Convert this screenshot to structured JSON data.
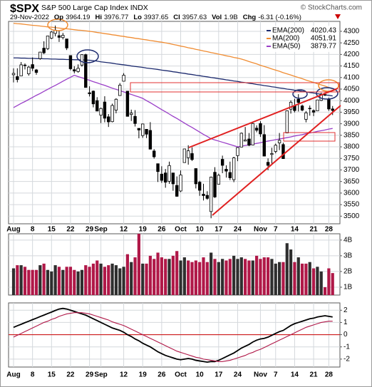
{
  "chart_data": [
    {
      "type": "candlestick",
      "title": "$SPX",
      "subtitle": "S&P 500 Large Cap Index INDX",
      "watermark": "© StockCharts.com",
      "date": "29-Nov-2022",
      "quote": [
        {
          "label": "Op",
          "value": "3964.19"
        },
        {
          "label": "Hi",
          "value": "3976.77"
        },
        {
          "label": "Lo",
          "value": "3937.65"
        },
        {
          "label": "Cl",
          "value": "3957.63"
        },
        {
          "label": "Vol",
          "value": "1.9B"
        },
        {
          "label": "Chg",
          "value": "-6.31 (-0.16%)"
        }
      ],
      "color": "#000000",
      "categories": [
        "Aug",
        null,
        null,
        null,
        null,
        "8",
        null,
        null,
        null,
        null,
        "15",
        null,
        null,
        null,
        null,
        "22",
        null,
        null,
        null,
        null,
        "29",
        null,
        null,
        "Sep",
        null,
        null,
        null,
        null,
        null,
        "12",
        null,
        null,
        null,
        null,
        "19",
        null,
        null,
        null,
        null,
        "26",
        null,
        null,
        null,
        null,
        "Oct",
        null,
        null,
        null,
        null,
        "10",
        null,
        null,
        null,
        null,
        "17",
        null,
        null,
        null,
        null,
        "24",
        null,
        null,
        null,
        null,
        null,
        "Nov",
        null,
        null,
        null,
        "7",
        null,
        null,
        null,
        null,
        "14",
        null,
        null,
        null,
        null,
        "21",
        null,
        null,
        null,
        "28",
        null
      ],
      "open": [
        4112,
        4104,
        4107,
        4154,
        4116,
        4156,
        4133,
        4182,
        4227,
        4225,
        4270,
        4291,
        4281,
        4273,
        4267,
        4195,
        4134,
        4126,
        4154,
        4199,
        4034,
        4041,
        4000,
        3937,
        3994,
        3930,
        3909,
        3959,
        4022,
        4084,
        4041,
        3940,
        3932,
        3880,
        3849,
        3876,
        3871,
        3782,
        3727,
        3682,
        3687,
        3651,
        3687,
        3633,
        3609,
        3732,
        3753,
        3771,
        3706,
        3647,
        3595,
        3590,
        3520,
        3690,
        3638,
        3746,
        3703,
        3689,
        3658,
        3762,
        3799,
        3825,
        3834,
        3808,
        3881,
        3901,
        3853,
        3733,
        3767,
        3780,
        3817,
        3810,
        3860,
        3963,
        3978,
        4006,
        3977,
        3919,
        3967,
        3957,
        3956,
        4001,
        4024,
        4005,
        3964.19
      ],
      "high": [
        4140,
        4140,
        4167,
        4161,
        4151,
        4187,
        4137,
        4211,
        4257,
        4280,
        4301,
        4325,
        4303,
        4293,
        4267,
        4196,
        4149,
        4157,
        4200,
        4203,
        4062,
        4044,
        4015,
        3970,
        4019,
        3942,
        3987,
        4010,
        4076,
        4119,
        4041,
        3961,
        3959,
        3880,
        3901,
        3877,
        3907,
        3790,
        3727,
        3716,
        3704,
        3736,
        3687,
        3672,
        3698,
        3791,
        3807,
        3798,
        3706,
        3653,
        3640,
        3608,
        3671,
        3712,
        3684,
        3762,
        3720,
        3736,
        3757,
        3799,
        3862,
        3886,
        3860,
        3905,
        3893,
        3911,
        3894,
        3750,
        3796,
        3814,
        3860,
        3818,
        3958,
        4001,
        4008,
        4028,
        3983,
        3955,
        3979,
        3962,
        4004,
        4034,
        4035,
        4013,
        3976.77
      ],
      "low": [
        4079,
        4079,
        4107,
        4135,
        4108,
        4128,
        4112,
        4177,
        4201,
        4219,
        4266,
        4278,
        4254,
        4265,
        4219,
        4131,
        4118,
        4121,
        4147,
        4057,
        4018,
        3971,
        3954,
        3903,
        3906,
        3886,
        3906,
        3945,
        4022,
        4083,
        3933,
        3912,
        3888,
        3837,
        3839,
        3838,
        3789,
        3749,
        3648,
        3644,
        3623,
        3640,
        3610,
        3584,
        3604,
        3732,
        3723,
        3739,
        3620,
        3588,
        3568,
        3571,
        3491,
        3579,
        3638,
        3686,
        3667,
        3656,
        3647,
        3738,
        3799,
        3824,
        3803,
        3808,
        3863,
        3843,
        3759,
        3699,
        3722,
        3772,
        3786,
        3748,
        3860,
        3944,
        3949,
        3953,
        3954,
        3906,
        3935,
        3933,
        3956,
        3998,
        4020,
        3956,
        3937.65
      ],
      "close": [
        4118,
        4091,
        4155,
        4152,
        4145,
        4140,
        4122,
        4210,
        4207,
        4280,
        4297,
        4305,
        4274,
        4283,
        4228,
        4138,
        4128,
        4140,
        4199,
        4057,
        4030,
        3986,
        3955,
        3966,
        3924,
        3908,
        3979,
        4006,
        4067,
        4110,
        3932,
        3946,
        3901,
        3873,
        3899,
        3855,
        3790,
        3757,
        3693,
        3655,
        3647,
        3719,
        3640,
        3586,
        3678,
        3791,
        3783,
        3745,
        3640,
        3612,
        3589,
        3577,
        3669,
        3583,
        3677,
        3720,
        3695,
        3666,
        3752,
        3797,
        3859,
        3830,
        3807,
        3901,
        3872,
        3856,
        3760,
        3720,
        3771,
        3807,
        3828,
        3749,
        3956,
        3993,
        3957,
        3992,
        3959,
        3947,
        3965,
        3950,
        4003,
        4027,
        4026,
        3963.94,
        3957.63
      ],
      "series": [
        {
          "name": "EMA(200)",
          "color": "#1c2a6e",
          "last_label": "4020.43",
          "values": [
            4185,
            4185,
            4184,
            4184,
            4183,
            4183,
            4182,
            4182,
            4181,
            4181,
            4180,
            4180,
            4179,
            4179,
            4178,
            4178,
            4177,
            4177,
            4176,
            4176,
            4175,
            4173,
            4171,
            4168,
            4166,
            4164,
            4162,
            4159,
            4157,
            4155,
            4153,
            4150,
            4148,
            4146,
            4144,
            4141,
            4139,
            4137,
            4135,
            4132,
            4130,
            4128,
            4125,
            4123,
            4120,
            4118,
            4115,
            4113,
            4110,
            4108,
            4105,
            4103,
            4100,
            4098,
            4095,
            4093,
            4090,
            4088,
            4085,
            4083,
            4080,
            4078,
            4075,
            4073,
            4070,
            4068,
            4065,
            4063,
            4060,
            4058,
            4055,
            4053,
            4050,
            4048,
            4045,
            4043,
            4040,
            4038,
            4035,
            4033,
            4030,
            4028,
            4025,
            4023,
            4020.43
          ]
        },
        {
          "name": "MA(200)",
          "color": "#f08c32",
          "last_label": "4051.91",
          "values": [
            4335,
            4333,
            4332,
            4330,
            4328,
            4326,
            4325,
            4323,
            4321,
            4319,
            4318,
            4316,
            4314,
            4312,
            4311,
            4309,
            4307,
            4305,
            4304,
            4302,
            4300,
            4298,
            4295,
            4293,
            4290,
            4288,
            4285,
            4283,
            4280,
            4278,
            4275,
            4273,
            4270,
            4268,
            4265,
            4263,
            4260,
            4258,
            4255,
            4253,
            4250,
            4247,
            4243,
            4240,
            4236,
            4233,
            4229,
            4226,
            4222,
            4219,
            4215,
            4212,
            4208,
            4205,
            4201,
            4198,
            4194,
            4191,
            4187,
            4184,
            4180,
            4175,
            4169,
            4164,
            4159,
            4153,
            4148,
            4143,
            4137,
            4132,
            4127,
            4121,
            4116,
            4111,
            4105,
            4100,
            4095,
            4089,
            4084,
            4079,
            4073,
            4068,
            4063,
            4057,
            4051.91
          ]
        },
        {
          "name": "EMA(50)",
          "color": "#9a3fc8",
          "last_label": "3879.77",
          "values": [
            3970,
            3979,
            3988,
            3996,
            4005,
            4014,
            4023,
            4031,
            4040,
            4049,
            4058,
            4066,
            4075,
            4084,
            4093,
            4101,
            4110,
            4104,
            4099,
            4093,
            4088,
            4082,
            4077,
            4071,
            4066,
            4060,
            4054,
            4049,
            4043,
            4038,
            4032,
            4027,
            4021,
            4016,
            4010,
            4000,
            3991,
            3981,
            3971,
            3961,
            3952,
            3942,
            3932,
            3923,
            3913,
            3903,
            3893,
            3884,
            3874,
            3864,
            3854,
            3845,
            3835,
            3830,
            3825,
            3820,
            3815,
            3810,
            3805,
            3800,
            3803,
            3806,
            3809,
            3812,
            3815,
            3818,
            3822,
            3825,
            3828,
            3831,
            3834,
            3837,
            3840,
            3843,
            3847,
            3850,
            3853,
            3857,
            3860,
            3863,
            3867,
            3870,
            3873,
            3877,
            3879.77
          ]
        }
      ],
      "ylim": [
        3467,
        4343
      ],
      "yticks": [
        3500,
        3550,
        3600,
        3650,
        3700,
        3750,
        3800,
        3850,
        3900,
        3950,
        4000,
        4050,
        4100,
        4150,
        4200,
        4250,
        4300
      ],
      "grid": true,
      "legend": "top-right"
    },
    {
      "type": "bar",
      "values": [
        2.2,
        2.4,
        2.4,
        2.3,
        2.1,
        2.1,
        2.1,
        2.4,
        2.5,
        2.1,
        2.0,
        2.4,
        2.3,
        2.1,
        2.3,
        2.3,
        2.1,
        2.0,
        2.1,
        2.4,
        2.3,
        2.5,
        2.7,
        2.5,
        2.3,
        2.4,
        2.5,
        2.4,
        2.2,
        2.3,
        3.1,
        2.6,
        2.9,
        4.4,
        2.5,
        2.5,
        3.0,
        2.8,
        3.2,
        2.9,
        2.8,
        2.8,
        3.0,
        3.3,
        2.7,
        2.9,
        2.7,
        2.6,
        2.7,
        2.6,
        2.9,
        2.6,
        3.2,
        2.8,
        2.6,
        2.8,
        2.7,
        2.8,
        3.0,
        2.8,
        2.9,
        2.8,
        2.7,
        2.7,
        3.0,
        2.8,
        2.9,
        2.9,
        2.8,
        2.5,
        2.6,
        2.6,
        3.8,
        3.4,
        2.6,
        2.9,
        2.5,
        2.5,
        2.6,
        2.2,
        2.3,
        2.0,
        1.0,
        2.2,
        1.9
      ],
      "up_color": "#2e2e2e",
      "down_color": "#b01848",
      "ylim": [
        0.5,
        4.4
      ],
      "yticks": [
        {
          "value": 1,
          "label": "1B"
        },
        {
          "value": 2,
          "label": "2B"
        },
        {
          "value": 3,
          "label": "3B"
        },
        {
          "value": 4,
          "label": "4B"
        }
      ],
      "grid": true
    },
    {
      "type": "line",
      "series": [
        {
          "color": "#000000",
          "values": [
            0.6,
            0.73,
            0.85,
            0.98,
            1.1,
            1.23,
            1.35,
            1.48,
            1.6,
            1.73,
            1.85,
            1.98,
            2.1,
            2.15,
            2.1,
            2.0,
            1.9,
            1.8,
            1.7,
            1.6,
            1.45,
            1.3,
            1.15,
            1.0,
            0.85,
            0.7,
            0.55,
            0.45,
            0.35,
            0.2,
            0.0,
            -0.15,
            -0.35,
            -0.5,
            -0.7,
            -0.85,
            -1.0,
            -1.2,
            -1.4,
            -1.55,
            -1.7,
            -1.8,
            -1.9,
            -2.0,
            -2.05,
            -2.0,
            -1.95,
            -2.0,
            -2.1,
            -2.15,
            -2.2,
            -2.25,
            -2.2,
            -2.2,
            -2.1,
            -1.95,
            -1.8,
            -1.65,
            -1.5,
            -1.3,
            -1.1,
            -0.95,
            -0.8,
            -0.6,
            -0.45,
            -0.35,
            -0.3,
            -0.2,
            -0.05,
            0.1,
            0.25,
            0.35,
            0.55,
            0.75,
            0.9,
            1.0,
            1.1,
            1.2,
            1.3,
            1.35,
            1.45,
            1.5,
            1.55,
            1.5,
            1.45
          ]
        },
        {
          "color": "#b01848",
          "values": [
            -0.2,
            -0.05,
            0.1,
            0.25,
            0.4,
            0.55,
            0.7,
            0.85,
            1.0,
            1.1,
            1.25,
            1.35,
            1.5,
            1.6,
            1.7,
            1.75,
            1.8,
            1.8,
            1.8,
            1.75,
            1.7,
            1.6,
            1.5,
            1.4,
            1.3,
            1.2,
            1.05,
            0.95,
            0.85,
            0.75,
            0.6,
            0.45,
            0.3,
            0.15,
            0.0,
            -0.15,
            -0.3,
            -0.45,
            -0.6,
            -0.75,
            -0.9,
            -1.05,
            -1.2,
            -1.35,
            -1.45,
            -1.55,
            -1.65,
            -1.75,
            -1.85,
            -1.9,
            -2.0,
            -2.05,
            -2.1,
            -2.15,
            -2.2,
            -2.2,
            -2.15,
            -2.1,
            -2.0,
            -1.9,
            -1.8,
            -1.7,
            -1.55,
            -1.45,
            -1.3,
            -1.2,
            -1.05,
            -0.9,
            -0.75,
            -0.6,
            -0.45,
            -0.3,
            -0.15,
            0.0,
            0.15,
            0.3,
            0.45,
            0.6,
            0.7,
            0.8,
            0.9,
            1.0,
            1.05,
            1.1,
            1.1
          ]
        }
      ],
      "reference_line": {
        "value": 0,
        "color": "#cc0000"
      },
      "ylim": [
        -2.65,
        2.6
      ],
      "yticks": [
        -2,
        -1,
        0,
        1,
        2
      ],
      "grid": true
    }
  ]
}
